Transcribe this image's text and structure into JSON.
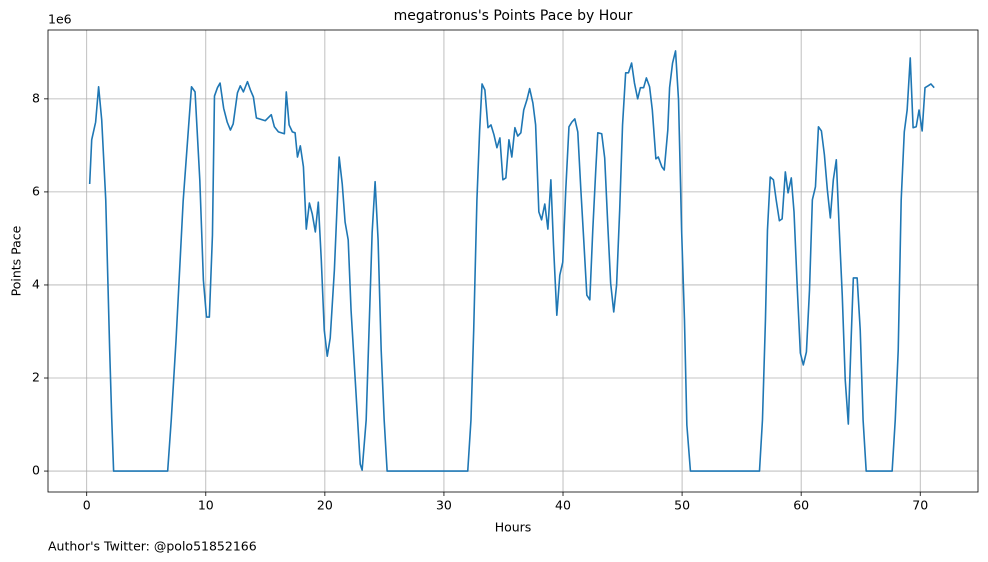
{
  "chart_data": {
    "type": "line",
    "title": "megatronus's Points Pace by Hour",
    "xlabel": "Hours",
    "ylabel": "Points Pace",
    "offset_label": "1e6",
    "footnote": "Author's Twitter: @polo51852166",
    "color": "#1f77b4",
    "grid": true,
    "xlim": [
      -3.25,
      74.85
    ],
    "ylim": [
      -0.45,
      9.48
    ],
    "xticks": [
      0,
      10,
      20,
      30,
      40,
      50,
      60,
      70
    ],
    "yticks": [
      0,
      2,
      4,
      6,
      8
    ],
    "x": [
      0.25,
      0.42,
      0.75,
      1.0,
      1.26,
      1.6,
      1.93,
      2.1,
      2.26,
      6.8,
      7.1,
      7.5,
      8.1,
      8.8,
      9.1,
      9.5,
      9.8,
      10.06,
      10.3,
      10.56,
      10.73,
      10.98,
      11.2,
      11.5,
      11.8,
      12.07,
      12.3,
      12.66,
      12.9,
      13.16,
      13.5,
      13.75,
      14.0,
      14.25,
      14.5,
      15.0,
      15.5,
      15.76,
      16.1,
      16.6,
      16.76,
      17.0,
      17.27,
      17.5,
      17.7,
      17.94,
      18.2,
      18.44,
      18.7,
      18.94,
      19.2,
      19.45,
      19.7,
      19.95,
      20.2,
      20.45,
      20.8,
      21.2,
      21.46,
      21.7,
      21.96,
      22.2,
      22.55,
      22.97,
      23.13,
      23.47,
      23.97,
      24.22,
      24.47,
      24.73,
      24.98,
      25.23,
      32.0,
      32.27,
      32.5,
      32.77,
      33.0,
      33.2,
      33.44,
      33.7,
      33.95,
      34.2,
      34.45,
      34.7,
      34.95,
      35.2,
      35.46,
      35.7,
      35.96,
      36.2,
      36.46,
      36.7,
      36.97,
      37.2,
      37.47,
      37.7,
      37.97,
      38.2,
      38.47,
      38.73,
      38.98,
      39.2,
      39.48,
      39.73,
      39.98,
      40.23,
      40.5,
      40.74,
      40.99,
      41.24,
      41.5,
      41.74,
      42.0,
      42.25,
      42.5,
      42.75,
      42.92,
      43.25,
      43.5,
      43.76,
      44.0,
      44.26,
      44.5,
      44.76,
      45.0,
      45.26,
      45.5,
      45.76,
      46.0,
      46.27,
      46.5,
      46.77,
      47.0,
      47.27,
      47.5,
      47.8,
      48.0,
      48.3,
      48.5,
      48.8,
      48.95,
      49.2,
      49.45,
      49.7,
      49.96,
      50.2,
      50.4,
      50.7,
      56.5,
      56.75,
      57.0,
      57.17,
      57.4,
      57.67,
      57.9,
      58.17,
      58.4,
      58.67,
      58.9,
      59.17,
      59.4,
      59.68,
      59.93,
      60.18,
      60.44,
      60.7,
      60.94,
      61.2,
      61.45,
      61.7,
      61.95,
      62.2,
      62.45,
      62.7,
      62.95,
      63.2,
      63.45,
      63.7,
      63.96,
      64.2,
      64.38,
      64.7,
      64.96,
      65.2,
      65.46,
      67.64,
      67.9,
      68.15,
      68.4,
      68.66,
      68.9,
      69.16,
      69.4,
      69.66,
      69.9,
      70.16,
      70.4,
      70.66,
      70.9,
      71.17
    ],
    "values": [
      6.17,
      7.12,
      7.5,
      8.26,
      7.55,
      5.83,
      2.6,
      1.14,
      0,
      0,
      1.1,
      2.8,
      5.8,
      8.26,
      8.15,
      6.25,
      4.1,
      3.31,
      3.31,
      5.07,
      8.06,
      8.24,
      8.34,
      7.8,
      7.5,
      7.33,
      7.46,
      8.13,
      8.28,
      8.15,
      8.37,
      8.19,
      8.04,
      7.59,
      7.57,
      7.53,
      7.66,
      7.4,
      7.29,
      7.25,
      8.15,
      7.44,
      7.29,
      7.27,
      6.75,
      6.99,
      6.54,
      5.2,
      5.76,
      5.53,
      5.14,
      5.78,
      4.54,
      3.03,
      2.47,
      2.86,
      4.32,
      6.75,
      6.17,
      5.35,
      4.97,
      3.46,
      1.96,
      0.15,
      0.02,
      1.1,
      5.12,
      6.22,
      4.97,
      2.6,
      1.1,
      0,
      0,
      1.1,
      3.03,
      5.83,
      7.33,
      8.32,
      8.19,
      7.38,
      7.44,
      7.23,
      6.95,
      7.16,
      6.26,
      6.3,
      7.12,
      6.75,
      7.38,
      7.2,
      7.27,
      7.76,
      7.98,
      8.22,
      7.91,
      7.44,
      5.57,
      5.4,
      5.74,
      5.2,
      6.26,
      4.86,
      3.35,
      4.21,
      4.49,
      6.04,
      7.4,
      7.5,
      7.57,
      7.29,
      6.04,
      4.97,
      3.78,
      3.68,
      5.18,
      6.47,
      7.27,
      7.25,
      6.73,
      5.29,
      4.04,
      3.42,
      4.0,
      5.61,
      7.44,
      8.56,
      8.56,
      8.77,
      8.34,
      8.0,
      8.24,
      8.24,
      8.45,
      8.26,
      7.76,
      6.71,
      6.75,
      6.54,
      6.47,
      7.33,
      8.24,
      8.77,
      9.03,
      7.98,
      5.18,
      3.25,
      0.99,
      0,
      0,
      1.1,
      3.25,
      5.18,
      6.32,
      6.26,
      5.83,
      5.38,
      5.42,
      6.43,
      5.98,
      6.3,
      5.57,
      3.89,
      2.54,
      2.28,
      2.56,
      3.89,
      5.83,
      6.11,
      7.4,
      7.31,
      6.8,
      6.04,
      5.44,
      6.26,
      6.69,
      5.18,
      3.78,
      1.96,
      1.01,
      2.86,
      4.15,
      4.15,
      3.03,
      1.1,
      0,
      0,
      1.1,
      2.6,
      5.83,
      7.29,
      7.76,
      8.88,
      7.38,
      7.4,
      7.76,
      7.31,
      8.24,
      8.28,
      8.32,
      8.24
    ]
  }
}
